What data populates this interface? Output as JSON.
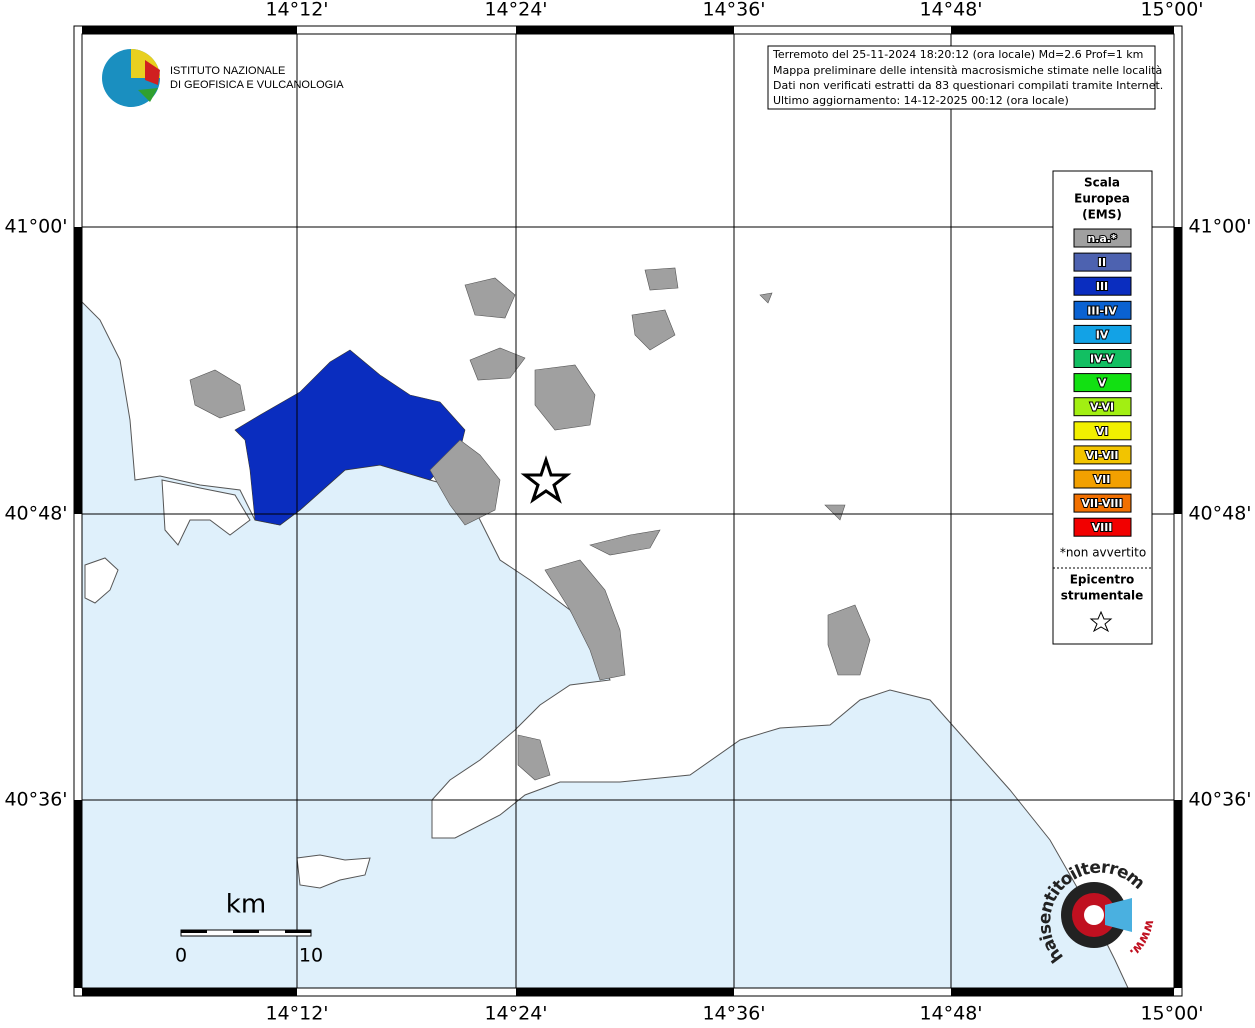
{
  "header": {
    "institute": [
      "ISTITUTO NAZIONALE",
      "DI GEOFISICA E VULCANOLOGIA"
    ]
  },
  "info": [
    "Terremoto del 25-11-2024 18:20:12 (ora locale) Md=2.6 Prof=1 km",
    "Mappa preliminare delle intensità macrosismiche stimate nelle località",
    "Dati non verificati estratti da 83 questionari compilati tramite Internet.",
    "Ultimo aggiornamento: 14-12-2025 00:12 (ora locale)"
  ],
  "axes": {
    "longitude_labels": [
      "14°12'",
      "14°24'",
      "14°36'",
      "14°48'",
      "15°00'"
    ],
    "latitude_labels": [
      "41°00'",
      "40°48'",
      "40°36'"
    ]
  },
  "legend": {
    "title": [
      "Scala",
      "Europea",
      "(EMS)"
    ],
    "items": [
      {
        "label": "n.a.*",
        "color": "#a0a0a0"
      },
      {
        "label": "II",
        "color": "#4d62b0"
      },
      {
        "label": "III",
        "color": "#0a2dbf"
      },
      {
        "label": "III-IV",
        "color": "#0a62d2"
      },
      {
        "label": "IV",
        "color": "#12a2e6"
      },
      {
        "label": "IV-V",
        "color": "#12bf62"
      },
      {
        "label": "V",
        "color": "#12e012"
      },
      {
        "label": "V-VI",
        "color": "#a2ef12"
      },
      {
        "label": "VI",
        "color": "#f2f000"
      },
      {
        "label": "VI-VII",
        "color": "#f2c400"
      },
      {
        "label": "VII",
        "color": "#f2a000"
      },
      {
        "label": "VII-VIII",
        "color": "#f27000"
      },
      {
        "label": "VIII",
        "color": "#f20000"
      }
    ],
    "note": "*non avvertito",
    "epicenter": [
      "Epicentro",
      "strumentale"
    ]
  },
  "scale_bar": {
    "unit": "km",
    "labels": [
      "0",
      "10"
    ]
  },
  "site_logo": {
    "name": "haisentitoilterremoto.it",
    "prefix": "www."
  }
}
